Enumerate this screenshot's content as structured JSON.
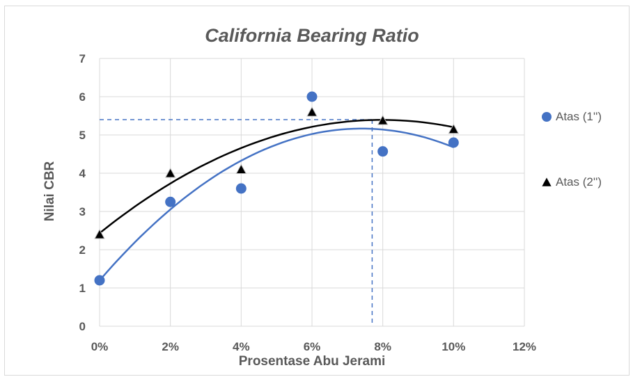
{
  "chart_data": {
    "type": "scatter",
    "title": "California Bearing Ratio",
    "xlabel": "Prosentase Abu Jerami",
    "ylabel": "Nilai CBR",
    "xlim": [
      0,
      12
    ],
    "ylim": [
      0,
      7
    ],
    "x_ticks": [
      0,
      2,
      4,
      6,
      8,
      10,
      12
    ],
    "x_tick_labels": [
      "0%",
      "2%",
      "4%",
      "6%",
      "8%",
      "10%",
      "12%"
    ],
    "y_ticks": [
      0,
      1,
      2,
      3,
      4,
      5,
      6,
      7
    ],
    "y_tick_labels": [
      "0",
      "1",
      "2",
      "3",
      "4",
      "5",
      "6",
      "7"
    ],
    "grid": true,
    "legend_position": "right",
    "series": [
      {
        "name": "Atas (1'')",
        "marker": "circle",
        "color": "#4472c4",
        "x": [
          0,
          2,
          4,
          6,
          8,
          10
        ],
        "y": [
          1.2,
          3.25,
          3.6,
          6.0,
          4.57,
          4.8
        ],
        "trendline": "polynomial",
        "trend_color": "#4472c4"
      },
      {
        "name": "Atas (2'')",
        "marker": "triangle",
        "color": "#000000",
        "x": [
          0,
          2,
          4,
          6,
          8,
          10
        ],
        "y": [
          2.4,
          4.0,
          4.1,
          5.6,
          5.38,
          5.15
        ],
        "trendline": "polynomial",
        "trend_color": "#000000"
      }
    ],
    "reference_lines": {
      "x": 7.7,
      "y": 5.4,
      "style": "dashed",
      "color": "#4472c4"
    }
  }
}
